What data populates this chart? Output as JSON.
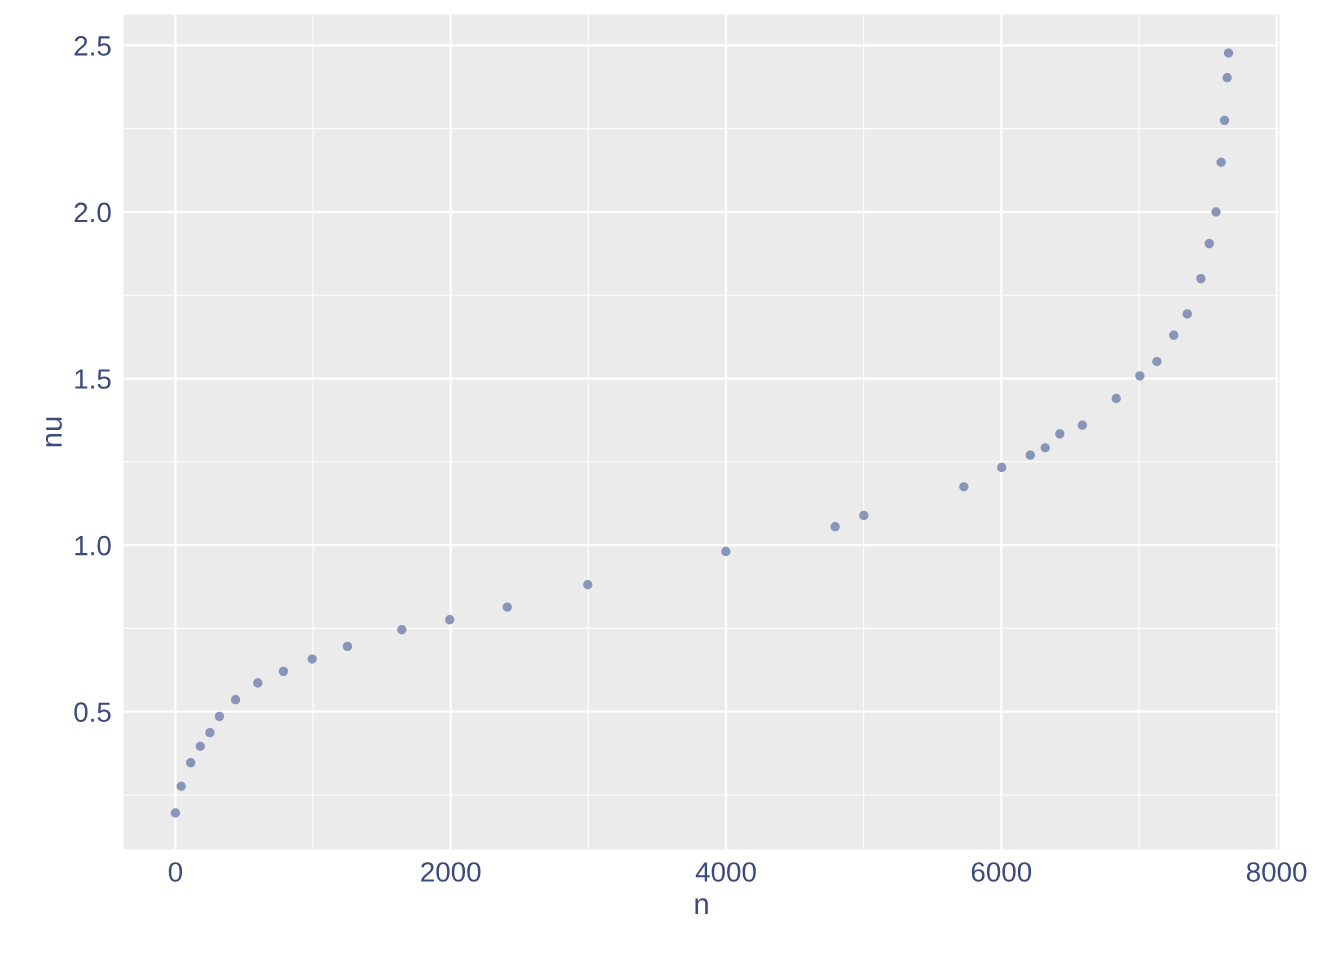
{
  "chart_data": {
    "type": "scatter",
    "xlabel": "n",
    "ylabel": "nu",
    "x": [
      0,
      42,
      111,
      181,
      251,
      320,
      437,
      599,
      785,
      994,
      1250,
      1645,
      1993,
      2411,
      2996,
      3999,
      4793,
      5001,
      5728,
      6003,
      6211,
      6319,
      6425,
      6589,
      6835,
      7007,
      7130,
      7253,
      7351,
      7450,
      7511,
      7560,
      7597,
      7622,
      7641,
      7651
    ],
    "series": [
      {
        "color": "#8390b5",
        "values": [
          0.196,
          0.276,
          0.347,
          0.396,
          0.437,
          0.486,
          0.536,
          0.586,
          0.621,
          0.658,
          0.696,
          0.746,
          0.776,
          0.814,
          0.881,
          0.981,
          1.055,
          1.089,
          1.175,
          1.233,
          1.27,
          1.292,
          1.334,
          1.36,
          1.44,
          1.508,
          1.551,
          1.63,
          1.694,
          1.8,
          1.905,
          2.0,
          2.149,
          2.275,
          2.403,
          2.477
        ]
      }
    ],
    "xlim": [
      -376,
      8021
    ],
    "ylim": [
      0.086,
      2.593
    ],
    "xticks": [
      0,
      2000,
      4000,
      6000,
      8000
    ],
    "yticks": [
      {
        "value": 0.5,
        "label": "0.5"
      },
      {
        "value": 1.0,
        "label": "1.0"
      },
      {
        "value": 1.5,
        "label": "1.5"
      },
      {
        "value": 2.0,
        "label": "2.0"
      },
      {
        "value": 2.5,
        "label": "2.5"
      }
    ],
    "grid": true,
    "marker": "circle",
    "legend": false
  }
}
